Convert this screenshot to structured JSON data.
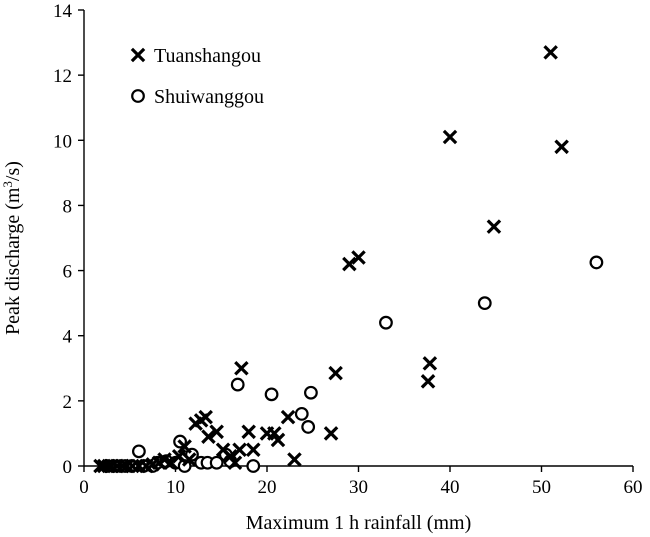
{
  "chart_data": {
    "type": "scatter",
    "xlabel": "Maximum 1 h rainfall (mm)",
    "ylabel_main": "Peak discharge (m",
    "ylabel_sup": "3",
    "ylabel_end": "/s)",
    "xlim": [
      0,
      60
    ],
    "ylim": [
      0,
      14
    ],
    "xticks": [
      0,
      10,
      20,
      30,
      40,
      50,
      60
    ],
    "yticks": [
      0,
      2,
      4,
      6,
      8,
      10,
      12,
      14
    ],
    "grid": false,
    "legend_position": "top-left",
    "series": [
      {
        "name": "Tuanshangou",
        "marker": "x",
        "color": "#000000",
        "points": [
          [
            1.8,
            0.0
          ],
          [
            2.2,
            0.0
          ],
          [
            2.7,
            0.0
          ],
          [
            3.0,
            0.0
          ],
          [
            3.6,
            0.0
          ],
          [
            4.2,
            0.0
          ],
          [
            4.7,
            0.0
          ],
          [
            5.3,
            0.0
          ],
          [
            6.0,
            0.0
          ],
          [
            6.8,
            0.0
          ],
          [
            7.5,
            0.05
          ],
          [
            8.2,
            0.1
          ],
          [
            8.8,
            0.2
          ],
          [
            9.5,
            0.1
          ],
          [
            10.4,
            0.3
          ],
          [
            11.0,
            0.6
          ],
          [
            11.5,
            0.2
          ],
          [
            12.2,
            1.3
          ],
          [
            12.8,
            1.4
          ],
          [
            13.3,
            1.5
          ],
          [
            13.6,
            0.9
          ],
          [
            14.5,
            1.05
          ],
          [
            15.2,
            0.5
          ],
          [
            16.0,
            0.3
          ],
          [
            16.5,
            0.1
          ],
          [
            17.0,
            0.5
          ],
          [
            17.2,
            3.0
          ],
          [
            18.0,
            1.05
          ],
          [
            18.5,
            0.5
          ],
          [
            20.0,
            1.0
          ],
          [
            20.8,
            1.0
          ],
          [
            21.2,
            0.8
          ],
          [
            22.3,
            1.5
          ],
          [
            23.0,
            0.2
          ],
          [
            27.0,
            1.0
          ],
          [
            27.5,
            2.85
          ],
          [
            29.0,
            6.2
          ],
          [
            30.0,
            6.4
          ],
          [
            37.6,
            2.6
          ],
          [
            37.8,
            3.15
          ],
          [
            40.0,
            10.1
          ],
          [
            44.8,
            7.35
          ],
          [
            51.0,
            12.7
          ],
          [
            52.2,
            9.8
          ]
        ]
      },
      {
        "name": "Shuiwanggou",
        "marker": "o",
        "color": "#000000",
        "points": [
          [
            2.5,
            0.0
          ],
          [
            3.2,
            0.0
          ],
          [
            4.0,
            0.0
          ],
          [
            4.5,
            0.0
          ],
          [
            5.2,
            0.0
          ],
          [
            6.0,
            0.45
          ],
          [
            6.5,
            0.0
          ],
          [
            7.5,
            0.0
          ],
          [
            8.0,
            0.1
          ],
          [
            9.0,
            0.15
          ],
          [
            10.0,
            0.1
          ],
          [
            10.5,
            0.75
          ],
          [
            11.0,
            0.0
          ],
          [
            11.8,
            0.35
          ],
          [
            12.8,
            0.1
          ],
          [
            13.5,
            0.1
          ],
          [
            14.5,
            0.1
          ],
          [
            15.5,
            0.35
          ],
          [
            16.0,
            0.15
          ],
          [
            16.8,
            2.5
          ],
          [
            18.5,
            0.0
          ],
          [
            20.5,
            2.2
          ],
          [
            23.8,
            1.6
          ],
          [
            24.5,
            1.2
          ],
          [
            24.8,
            2.25
          ],
          [
            33.0,
            4.4
          ],
          [
            43.8,
            5.0
          ],
          [
            56.0,
            6.25
          ]
        ]
      }
    ]
  }
}
